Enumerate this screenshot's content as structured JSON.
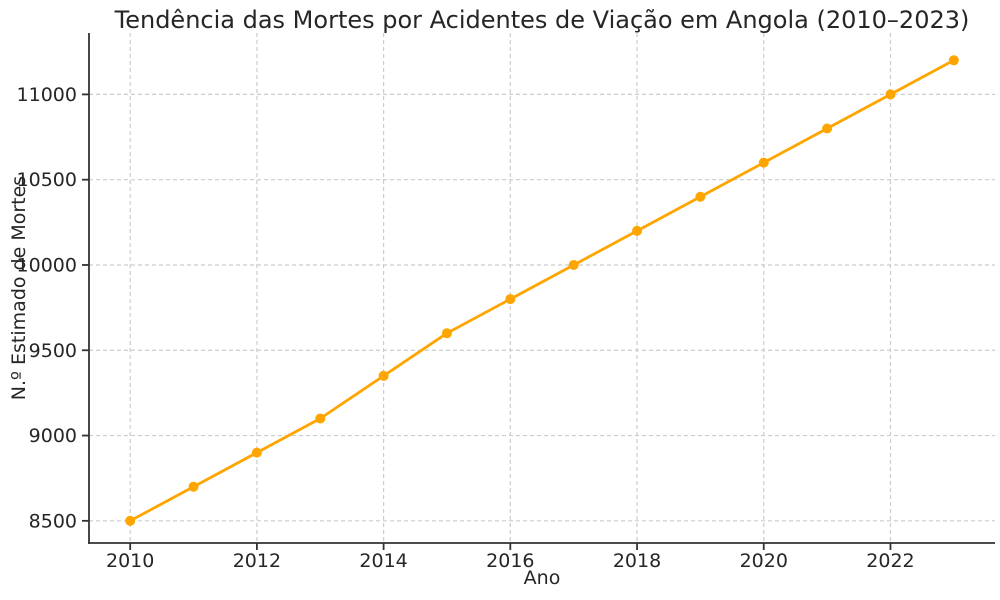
{
  "figure": {
    "title": "Tendência das Mortes por Acidentes de Viação em Angola (2010–2023)",
    "xlabel": "Ano",
    "ylabel": "N.º Estimado de Mortes"
  },
  "chart_data": {
    "type": "line",
    "title": "Tendência das Mortes por Acidentes de Viação em Angola (2010–2023)",
    "xlabel": "Ano",
    "ylabel": "N.º Estimado de Mortes",
    "x": [
      2010,
      2011,
      2012,
      2013,
      2014,
      2015,
      2016,
      2017,
      2018,
      2019,
      2020,
      2021,
      2022,
      2023
    ],
    "values": [
      8500,
      8700,
      8900,
      9100,
      9350,
      9600,
      9800,
      10000,
      10200,
      10400,
      10600,
      10800,
      11000,
      11200
    ],
    "xticks": [
      2010,
      2012,
      2014,
      2016,
      2018,
      2020,
      2022
    ],
    "yticks": [
      8500,
      9000,
      9500,
      10000,
      10500,
      11000
    ],
    "xlim": [
      2009.35,
      2023.65
    ],
    "ylim": [
      8370,
      11360
    ],
    "grid": true,
    "grid_style": "dashed",
    "legend": false,
    "line_color": "#FFA500",
    "marker": "circle",
    "marker_radius": 5,
    "background": "#FFFFFF"
  }
}
